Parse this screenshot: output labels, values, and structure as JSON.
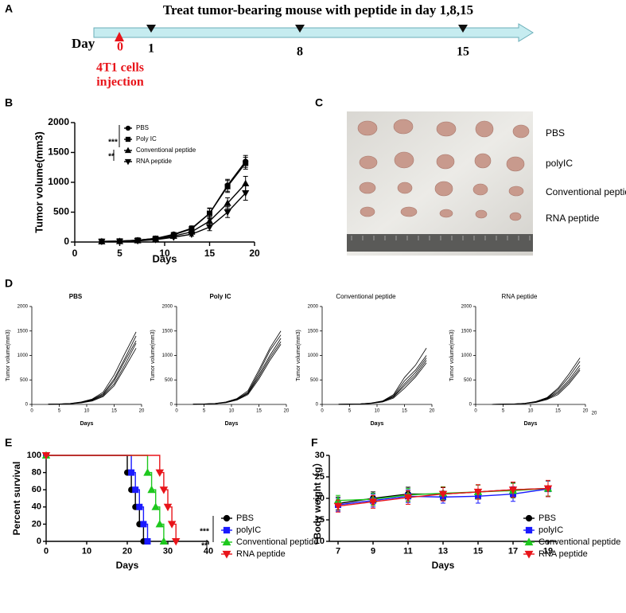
{
  "panel_labels": [
    "A",
    "B",
    "C",
    "D",
    "E",
    "F"
  ],
  "timeline": {
    "title": "Treat tumor-bearing mouse with peptide in day 1,8,15",
    "axis_label": "Day",
    "injection_day": "0",
    "injection_label": [
      "4T1 cells",
      "injection"
    ],
    "treatment_days": [
      "1",
      "8",
      "15"
    ]
  },
  "photo": {
    "row_labels": [
      "PBS",
      "polyIC",
      "Conventional peptide",
      "RNA peptide"
    ]
  },
  "chart_data": [
    {
      "type": "line",
      "ylabel": "Tumor volume(mm3)",
      "xlabel": "Days",
      "xlim": [
        0,
        20
      ],
      "xticks": [
        0,
        5,
        10,
        15,
        20
      ],
      "ylim": [
        0,
        2000
      ],
      "yticks": [
        0,
        500,
        1000,
        1500,
        2000
      ],
      "x": [
        3,
        5,
        7,
        9,
        11,
        13,
        15,
        17,
        19
      ],
      "series": [
        {
          "name": "PBS",
          "color": "#000000",
          "marker": "circle",
          "values": [
            10,
            15,
            30,
            60,
            130,
            230,
            480,
            950,
            1350
          ],
          "errors": [
            3,
            5,
            8,
            12,
            20,
            40,
            90,
            100,
            100
          ]
        },
        {
          "name": "Poly IC",
          "color": "#000000",
          "marker": "square",
          "values": [
            10,
            15,
            30,
            60,
            120,
            220,
            480,
            930,
            1320
          ],
          "errors": [
            3,
            5,
            8,
            12,
            20,
            40,
            80,
            100,
            100
          ]
        },
        {
          "name": "Conventional peptide",
          "color": "#000000",
          "marker": "triangle-up",
          "values": [
            8,
            12,
            25,
            50,
            100,
            170,
            350,
            650,
            980
          ],
          "errors": [
            3,
            4,
            6,
            10,
            18,
            30,
            70,
            90,
            120
          ]
        },
        {
          "name": "RNA peptide",
          "color": "#000000",
          "marker": "triangle-down",
          "values": [
            8,
            10,
            20,
            40,
            80,
            130,
            250,
            500,
            820
          ],
          "errors": [
            2,
            4,
            6,
            10,
            15,
            30,
            60,
            90,
            120
          ]
        }
      ],
      "annotations": [
        "***",
        "**"
      ]
    },
    {
      "type": "line",
      "title": "PBS",
      "ylabel": "Tumor volume(mm3)",
      "xlabel": "Days",
      "xlim": [
        0,
        20
      ],
      "xticks": [
        0,
        5,
        10,
        15,
        20
      ],
      "ylim": [
        0,
        2000
      ],
      "yticks": [
        0,
        500,
        1000,
        1500,
        2000
      ],
      "x": [
        3,
        5,
        7,
        9,
        11,
        13,
        15,
        17,
        19
      ],
      "series": [
        {
          "color": "#000000",
          "values": [
            5,
            10,
            20,
            50,
            110,
            250,
            600,
            1050,
            1480
          ]
        },
        {
          "color": "#000000",
          "values": [
            5,
            8,
            18,
            45,
            100,
            220,
            520,
            950,
            1400
          ]
        },
        {
          "color": "#000000",
          "values": [
            4,
            8,
            15,
            40,
            90,
            200,
            480,
            900,
            1300
          ]
        },
        {
          "color": "#000000",
          "values": [
            4,
            7,
            15,
            35,
            80,
            180,
            420,
            820,
            1250
          ]
        },
        {
          "color": "#000000",
          "values": [
            3,
            6,
            12,
            30,
            70,
            160,
            380,
            760,
            1150
          ]
        }
      ]
    },
    {
      "type": "line",
      "title": "Poly IC",
      "ylabel": "Tumor volume(mm3)",
      "xlabel": "Days",
      "xlim": [
        0,
        20
      ],
      "xticks": [
        0,
        5,
        10,
        15,
        20
      ],
      "ylim": [
        0,
        2000
      ],
      "yticks": [
        0,
        500,
        1000,
        1500,
        2000
      ],
      "x": [
        3,
        5,
        7,
        9,
        11,
        13,
        15,
        17,
        19
      ],
      "series": [
        {
          "color": "#000000",
          "values": [
            5,
            10,
            20,
            50,
            120,
            280,
            700,
            1150,
            1500
          ]
        },
        {
          "color": "#000000",
          "values": [
            5,
            9,
            18,
            45,
            110,
            250,
            650,
            1100,
            1420
          ]
        },
        {
          "color": "#000000",
          "values": [
            4,
            8,
            16,
            40,
            100,
            230,
            600,
            1000,
            1350
          ]
        },
        {
          "color": "#000000",
          "values": [
            4,
            8,
            15,
            38,
            95,
            220,
            560,
            950,
            1280
          ]
        },
        {
          "color": "#000000",
          "values": [
            3,
            7,
            14,
            35,
            90,
            200,
            520,
            900,
            1230
          ]
        }
      ]
    },
    {
      "type": "line",
      "title": "Conventional peptide",
      "ylabel": "Tumor volume(mm3)",
      "xlabel": "Days",
      "xlim": [
        0,
        20
      ],
      "xticks": [
        0,
        5,
        10,
        15,
        20
      ],
      "ylim": [
        0,
        2000
      ],
      "yticks": [
        0,
        500,
        1000,
        1500,
        2000
      ],
      "x": [
        3,
        5,
        7,
        9,
        11,
        13,
        15,
        17,
        19
      ],
      "series": [
        {
          "color": "#000000",
          "values": [
            3,
            6,
            12,
            30,
            70,
            200,
            550,
            800,
            1150
          ]
        },
        {
          "color": "#000000",
          "values": [
            3,
            6,
            11,
            28,
            65,
            180,
            480,
            700,
            1000
          ]
        },
        {
          "color": "#000000",
          "values": [
            3,
            5,
            10,
            25,
            60,
            160,
            420,
            650,
            950
          ]
        },
        {
          "color": "#000000",
          "values": [
            2,
            5,
            9,
            22,
            55,
            150,
            380,
            600,
            900
          ]
        },
        {
          "color": "#000000",
          "values": [
            2,
            4,
            8,
            20,
            50,
            130,
            330,
            560,
            850
          ]
        }
      ]
    },
    {
      "type": "line",
      "title": "RNA peptide",
      "ylabel": "Tumor volume(mm3)",
      "xlabel": "Days",
      "xlim": [
        0,
        20
      ],
      "xticks": [
        0,
        5,
        10,
        15,
        20
      ],
      "ylim": [
        0,
        2000
      ],
      "yticks": [
        0,
        500,
        1000,
        1500,
        2000
      ],
      "x": [
        3,
        5,
        7,
        9,
        11,
        13,
        15,
        17,
        19
      ],
      "series": [
        {
          "color": "#000000",
          "values": [
            2,
            5,
            10,
            25,
            60,
            140,
            330,
            620,
            950
          ]
        },
        {
          "color": "#000000",
          "values": [
            2,
            5,
            9,
            22,
            55,
            130,
            300,
            560,
            880
          ]
        },
        {
          "color": "#000000",
          "values": [
            2,
            4,
            8,
            20,
            50,
            120,
            260,
            500,
            800
          ]
        },
        {
          "color": "#000000",
          "values": [
            2,
            4,
            8,
            18,
            45,
            110,
            230,
            460,
            740
          ]
        },
        {
          "color": "#000000",
          "values": [
            1,
            3,
            7,
            16,
            40,
            100,
            200,
            420,
            700
          ]
        }
      ],
      "annotations": [
        "20"
      ]
    },
    {
      "type": "step",
      "ylabel": "Percent survival",
      "xlabel": "Days",
      "xlim": [
        0,
        40
      ],
      "xticks": [
        0,
        10,
        20,
        30,
        40
      ],
      "ylim": [
        0,
        100
      ],
      "yticks": [
        0,
        20,
        40,
        60,
        80,
        100
      ],
      "series": [
        {
          "name": "PBS",
          "color": "#000000",
          "marker": "circle",
          "x": [
            0,
            20,
            21,
            22,
            23,
            24
          ],
          "values": [
            100,
            80,
            60,
            40,
            20,
            0
          ]
        },
        {
          "name": "polyIC",
          "color": "#1a1aff",
          "marker": "square",
          "x": [
            0,
            21,
            22,
            23,
            24,
            25
          ],
          "values": [
            100,
            80,
            60,
            40,
            20,
            0
          ]
        },
        {
          "name": "Conventional peptide",
          "color": "#1ec81e",
          "marker": "triangle-up",
          "x": [
            0,
            25,
            26,
            27,
            28,
            29
          ],
          "values": [
            100,
            80,
            60,
            40,
            20,
            0
          ]
        },
        {
          "name": "RNA peptide",
          "color": "#e8141a",
          "marker": "triangle-down",
          "x": [
            0,
            28,
            29,
            30,
            31,
            32
          ],
          "values": [
            100,
            80,
            60,
            40,
            20,
            0
          ]
        }
      ],
      "annotations": [
        "***",
        "**"
      ]
    },
    {
      "type": "line",
      "ylabel": "Body weight（g）",
      "xlabel": "Days",
      "xlim": [
        6.5,
        19.5
      ],
      "xticks": [
        7,
        9,
        11,
        13,
        15,
        17,
        19
      ],
      "ylim": [
        10,
        30
      ],
      "yticks": [
        10,
        15,
        20,
        25,
        30
      ],
      "x": [
        7,
        9,
        11,
        13,
        15,
        17,
        19
      ],
      "series": [
        {
          "name": "PBS",
          "color": "#000000",
          "marker": "circle",
          "values": [
            18.8,
            20,
            21,
            21,
            21.5,
            22,
            22.3
          ],
          "errors": [
            1.5,
            1.5,
            1.6,
            1.5,
            1.6,
            1.7,
            1.8
          ]
        },
        {
          "name": "polyIC",
          "color": "#1a1aff",
          "marker": "square",
          "values": [
            18.5,
            19.5,
            20.5,
            20.3,
            20.5,
            21,
            22.2
          ],
          "errors": [
            1.5,
            1.5,
            1.5,
            1.4,
            1.6,
            1.7,
            1.8
          ]
        },
        {
          "name": "Conventional peptide",
          "color": "#1ec81e",
          "marker": "triangle-up",
          "values": [
            19.5,
            19.8,
            20.8,
            21.2,
            21.5,
            21.8,
            22.3
          ],
          "errors": [
            1.2,
            1.4,
            1.5,
            1.5,
            1.6,
            1.7,
            1.8
          ]
        },
        {
          "name": "RNA peptide",
          "color": "#e8141a",
          "marker": "triangle-down",
          "values": [
            18.2,
            19.2,
            20.2,
            21,
            21.5,
            22,
            22.3
          ],
          "errors": [
            1.4,
            1.5,
            1.6,
            1.6,
            1.7,
            1.8,
            1.9
          ]
        }
      ]
    }
  ]
}
